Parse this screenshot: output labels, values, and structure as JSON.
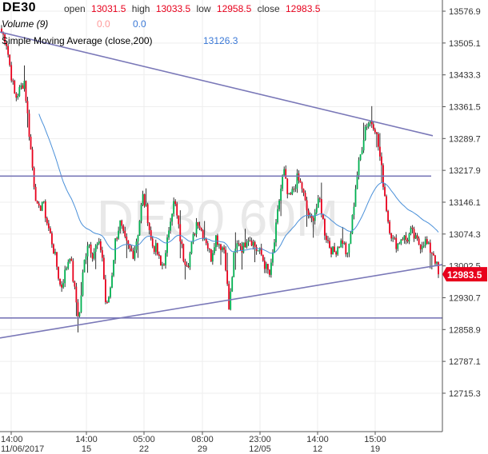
{
  "header": {
    "symbol": "DE30",
    "open_label": "open",
    "open_value": "13031.5",
    "high_label": "high",
    "high_value": "13033.5",
    "low_label": "low",
    "low_value": "12958.5",
    "close_label": "close",
    "close_value": "12983.5"
  },
  "volume": {
    "label": "Volume (9)",
    "value1": "0.0",
    "value2": "0.0"
  },
  "sma": {
    "label": "Simple Moving Average (close,200)",
    "value": "13126.3"
  },
  "watermark": "DE30 60M",
  "chart_data": {
    "type": "candlestick",
    "symbol": "DE30",
    "timeframe": "60M",
    "y_ticks": [
      "13576.9",
      "13505.1",
      "13433.3",
      "13361.5",
      "13289.7",
      "13217.9",
      "13146.1",
      "13074.3",
      "13002.5",
      "12930.7",
      "12858.9",
      "12787.1",
      "12715.3"
    ],
    "ylim": [
      12690,
      13610
    ],
    "x_ticks": [
      {
        "time": "14:00",
        "date": "11/06/2017"
      },
      {
        "time": "14:00",
        "date": "15"
      },
      {
        "time": "05:00",
        "date": "22"
      },
      {
        "time": "08:00",
        "date": "29"
      },
      {
        "time": "23:00",
        "date": "12/05"
      },
      {
        "time": "14:00",
        "date": "12"
      },
      {
        "time": "15:00",
        "date": "19"
      }
    ],
    "last_price": "12983.5",
    "colors": {
      "up": "#00b050",
      "down": "#e8001c",
      "trendline": "#7a78b8",
      "sma": "#4a90d9",
      "last_price_bg": "#e8001c"
    },
    "close_path": [
      13530,
      13510,
      13440,
      13380,
      13400,
      13420,
      13310,
      13200,
      13120,
      13150,
      13100,
      13060,
      13010,
      12950,
      12990,
      13030,
      12950,
      12880,
      13000,
      13060,
      13030,
      13050,
      13040,
      12900,
      12960,
      13060,
      13100,
      13060,
      13040,
      13030,
      13080,
      13160,
      13120,
      13050,
      13040,
      13000,
      13020,
      13110,
      13150,
      13080,
      13020,
      13010,
      13060,
      13110,
      13080,
      13060,
      13020,
      13070,
      13050,
      13040,
      12900,
      13020,
      13060,
      13040,
      13070,
      13060,
      13040,
      13030,
      13000,
      12980,
      13060,
      13150,
      13220,
      13150,
      13170,
      13200,
      13180,
      13130,
      13100,
      13130,
      13150,
      13080,
      13050,
      13030,
      13050,
      13060,
      13020,
      13100,
      13200,
      13260,
      13320,
      13330,
      13320,
      13260,
      13180,
      13100,
      13060,
      13050,
      13070,
      13060,
      13080,
      13060,
      13050,
      13060,
      13040,
      13030,
      12983.5
    ]
  }
}
